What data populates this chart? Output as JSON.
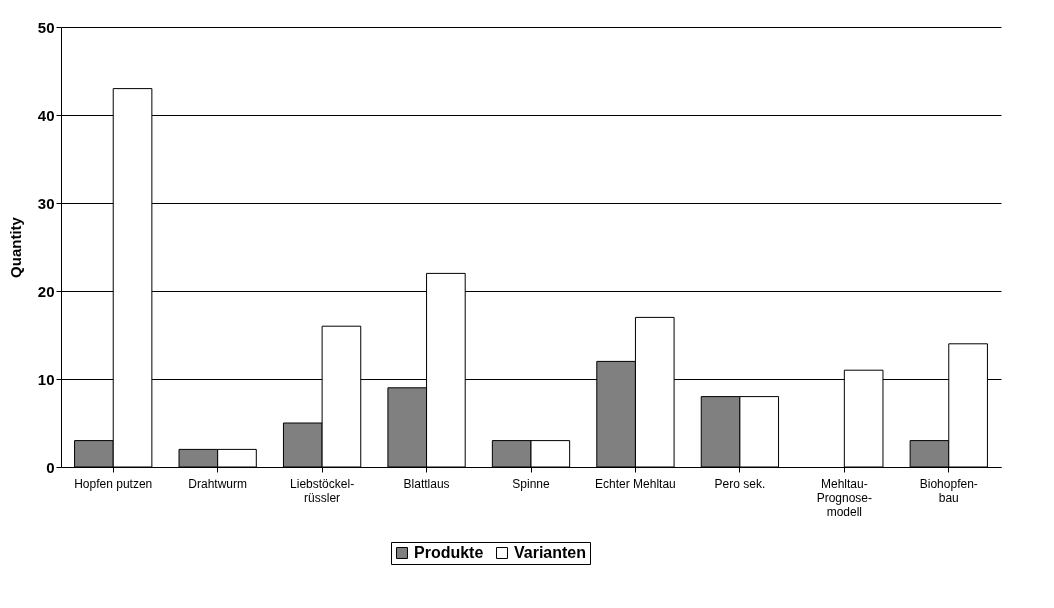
{
  "chart_data": {
    "type": "bar",
    "ylabel": "Quantity",
    "categories": [
      "Hopfen putzen",
      "Drahtwurm",
      "Liebstöckel-rüssler",
      "Blattlaus",
      "Spinne",
      "Echter Mehltau",
      "Pero sek.",
      "Mehltau-Prognose-modell",
      "Biohopfen-bau"
    ],
    "series": [
      {
        "name": "Produkte",
        "color": "#808080",
        "values": [
          3,
          2,
          5,
          9,
          3,
          12,
          8,
          null,
          3
        ]
      },
      {
        "name": "Varianten",
        "color": "#ffffff",
        "values": [
          43,
          2,
          16,
          22,
          3,
          17,
          8,
          11,
          14
        ]
      }
    ],
    "ylim": [
      0,
      50
    ],
    "yticks": [
      0,
      10,
      20,
      30,
      40,
      50
    ],
    "grid": "y",
    "legend": "bottom"
  }
}
